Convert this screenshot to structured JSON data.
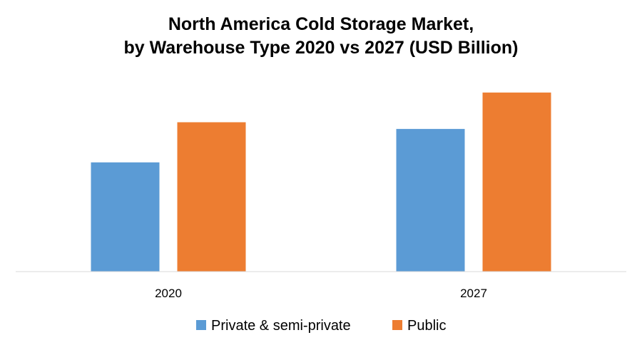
{
  "chart_data": {
    "type": "bar",
    "title_line1": "North America Cold Storage Market,",
    "title_line2": "by Warehouse Type 2020 vs 2027 (USD Billion)",
    "xlabel": "",
    "ylabel": "",
    "categories": [
      "2020",
      "2027"
    ],
    "series": [
      {
        "name": "Private & semi-private",
        "values": [
          147,
          192
        ],
        "color": "#5B9BD5"
      },
      {
        "name": "Public",
        "values": [
          201,
          241
        ],
        "color": "#ED7D31"
      }
    ],
    "ylim": [
      0,
      260
    ],
    "grid": false,
    "legend": "bottom"
  }
}
